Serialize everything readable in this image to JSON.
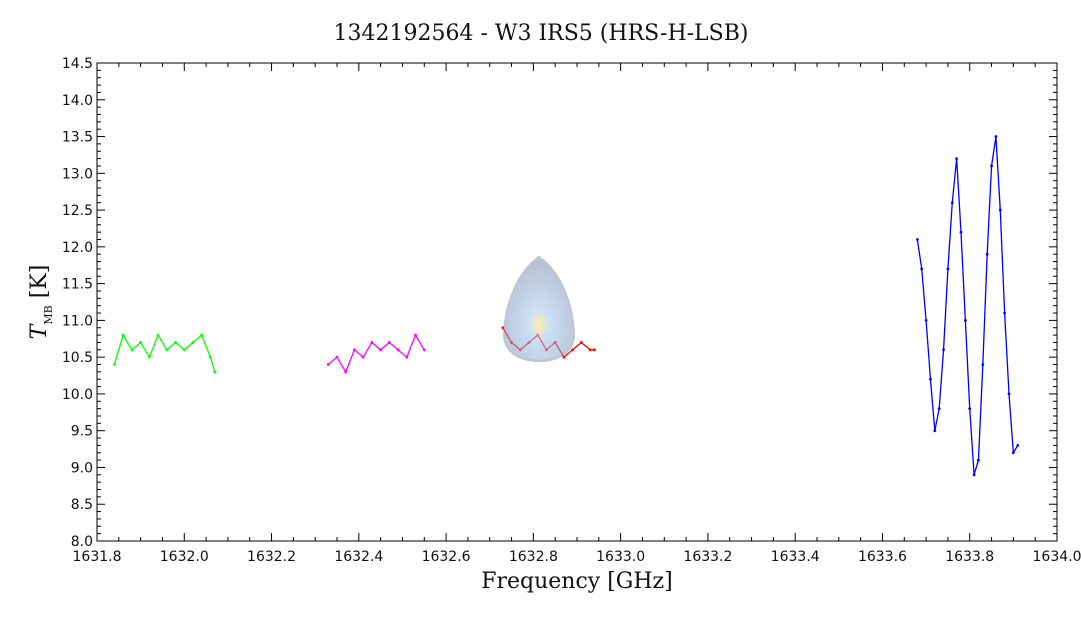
{
  "chart_data": {
    "type": "line",
    "title": "1342192564 - W3 IRS5 (HRS-H-LSB)",
    "xlabel": "Frequency [GHz]",
    "ylabel": {
      "main": "T",
      "sub": "MB",
      "unit": "[K]"
    },
    "xlim": [
      1631.8,
      1634.0
    ],
    "ylim": [
      8.0,
      14.5
    ],
    "xticks": [
      1631.8,
      1632.0,
      1632.2,
      1632.4,
      1632.6,
      1632.8,
      1633.0,
      1633.2,
      1633.4,
      1633.6,
      1633.8,
      1634.0
    ],
    "xtick_labels": [
      "1631.8",
      "1632.0",
      "1632.2",
      "1632.4",
      "1632.6",
      "1632.8",
      "1633.0",
      "1633.2",
      "1633.4",
      "1633.6",
      "1633.8",
      "1634.0"
    ],
    "yticks": [
      8.0,
      8.5,
      9.0,
      9.5,
      10.0,
      10.5,
      11.0,
      11.5,
      12.0,
      12.5,
      13.0,
      13.5,
      14.0,
      14.5
    ],
    "ytick_labels": [
      "8.0",
      "8.5",
      "9.0",
      "9.5",
      "10.0",
      "10.5",
      "11.0",
      "11.5",
      "12.0",
      "12.5",
      "13.0",
      "13.5",
      "14.0",
      "14.5"
    ],
    "grid": false,
    "series": [
      {
        "color": "#00ff00",
        "x": [
          1631.84,
          1631.86,
          1631.88,
          1631.9,
          1631.92,
          1631.94,
          1631.96,
          1631.98,
          1632.0,
          1632.02,
          1632.04,
          1632.06,
          1632.07
        ],
        "y": [
          10.4,
          10.8,
          10.6,
          10.7,
          10.5,
          10.8,
          10.6,
          10.7,
          10.6,
          10.7,
          10.8,
          10.5,
          10.3
        ]
      },
      {
        "color": "#ff00ff",
        "x": [
          1632.33,
          1632.35,
          1632.37,
          1632.39,
          1632.41,
          1632.43,
          1632.45,
          1632.47,
          1632.49,
          1632.51,
          1632.53,
          1632.55
        ],
        "y": [
          10.4,
          10.5,
          10.3,
          10.6,
          10.5,
          10.7,
          10.6,
          10.7,
          10.6,
          10.5,
          10.8,
          10.6
        ]
      },
      {
        "color": "#ff0000",
        "x": [
          1632.73,
          1632.75,
          1632.77,
          1632.79,
          1632.81,
          1632.83,
          1632.85,
          1632.87,
          1632.89,
          1632.91,
          1632.93,
          1632.94
        ],
        "y": [
          10.9,
          10.7,
          10.6,
          10.7,
          10.8,
          10.6,
          10.7,
          10.5,
          10.6,
          10.7,
          10.6,
          10.6
        ]
      },
      {
        "color": "#0000ff",
        "x": [
          1633.68,
          1633.69,
          1633.7,
          1633.71,
          1633.72,
          1633.73,
          1633.74,
          1633.75,
          1633.76,
          1633.77,
          1633.78,
          1633.79,
          1633.8,
          1633.81,
          1633.82,
          1633.83,
          1633.84,
          1633.85,
          1633.86,
          1633.87,
          1633.88,
          1633.89,
          1633.9,
          1633.91
        ],
        "y": [
          12.1,
          11.7,
          11.0,
          10.2,
          9.5,
          9.8,
          10.6,
          11.7,
          12.6,
          13.2,
          12.2,
          11.0,
          9.8,
          8.9,
          9.1,
          10.4,
          11.9,
          13.1,
          13.5,
          12.5,
          11.1,
          10.0,
          9.2,
          9.3
        ]
      }
    ]
  },
  "colors": {
    "background": "#ffffff",
    "axis": "#000000"
  }
}
